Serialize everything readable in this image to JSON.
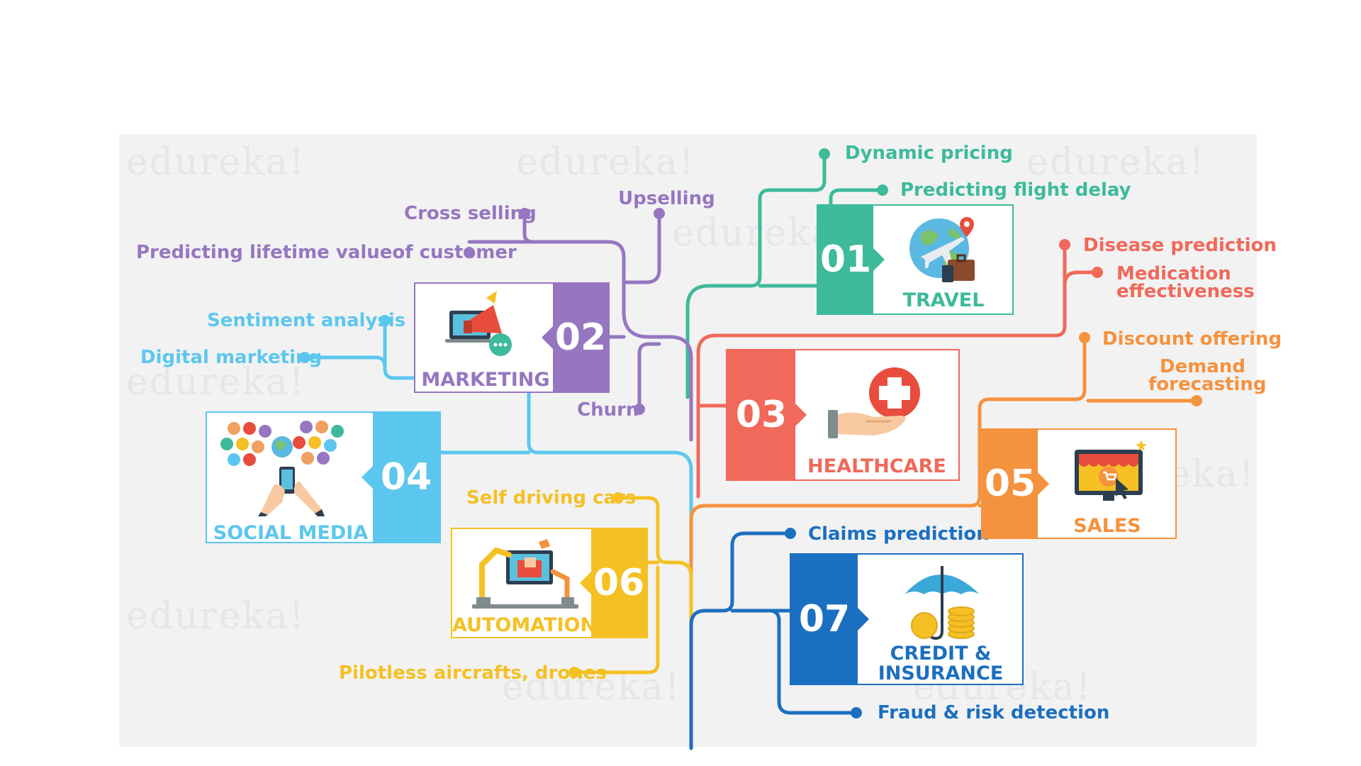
{
  "watermark": "edureka!",
  "colors": {
    "travel": "#3dba9a",
    "marketing": "#9676c0",
    "healthcare": "#f0695a",
    "social": "#5cc7ee",
    "sales": "#f5923e",
    "automation": "#f5c023",
    "credit": "#1b6fc0"
  },
  "branches": {
    "travel": {
      "number": "01",
      "title": "TRAVEL",
      "icon": "globe-airplane-icon",
      "items": [
        "Dynamic pricing",
        "Predicting flight delay"
      ]
    },
    "marketing": {
      "number": "02",
      "title": "MARKETING",
      "icon": "megaphone-laptop-icon",
      "items": [
        "Cross selling",
        "Upselling",
        "Predicting lifetime valueof customer",
        "Churn"
      ]
    },
    "healthcare": {
      "number": "03",
      "title": "HEALTHCARE",
      "icon": "hand-medical-cross-icon",
      "items": [
        "Disease prediction",
        "Medication",
        "effectiveness"
      ]
    },
    "social": {
      "number": "04",
      "title": "SOCIAL MEDIA",
      "icon": "people-network-icon",
      "items": [
        "Sentiment analysis",
        "Digital marketing"
      ]
    },
    "sales": {
      "number": "05",
      "title": "SALES",
      "icon": "shop-screen-icon",
      "items": [
        "Discount offering",
        "Demand",
        "forecasting"
      ]
    },
    "automation": {
      "number": "06",
      "title": "AUTOMATION",
      "icon": "robot-arm-icon",
      "items": [
        "Self driving cars",
        "Pilotless aircrafts, drones"
      ]
    },
    "credit": {
      "number": "07",
      "title": "CREDIT &",
      "title2": "INSURANCE",
      "icon": "umbrella-coins-icon",
      "items": [
        "Claims prediction",
        "Fraud & risk detection"
      ]
    }
  }
}
